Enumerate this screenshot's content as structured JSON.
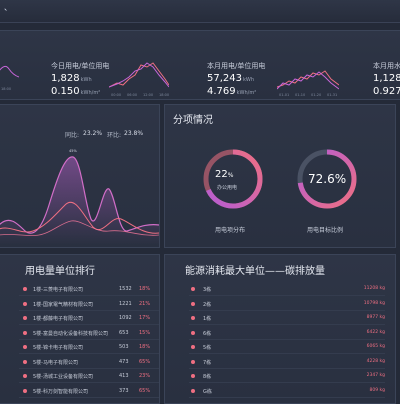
{
  "topbar": {
    "title": "、"
  },
  "stats": {
    "today_label": "今日用电/单位用电",
    "today_value1": "1,828",
    "today_unit1": "kWh",
    "today_value2": "0.150",
    "today_unit2": "kWh/m²",
    "month_label": "本月用电/单位用电",
    "month_value1": "57,243",
    "month_unit1": "kWh",
    "month_value2": "4.769",
    "month_unit2": "kWh/m²",
    "right_label": "本月用水",
    "right_value1": "1,128",
    "right_value2": "0.927",
    "mini_axis_a": [
      "00:00",
      "06:00",
      "12:00",
      "18:00"
    ],
    "mini_axis_b": [
      "01-01",
      "01-10",
      "01-20",
      "01-31"
    ]
  },
  "trend": {
    "yoy_label": "同比:",
    "yoy_value": "23.2%",
    "mom_label": "环比:",
    "mom_value": "23.8%",
    "peak_label": "45%"
  },
  "subitem": {
    "title": "分项情况",
    "donut1_value": "22",
    "donut1_unit": "%",
    "donut1_sub": "办公用电",
    "donut1_caption": "用电项分布",
    "donut1_fraction": 0.22,
    "donut2_value": "72.6%",
    "donut2_caption": "用电目标比例",
    "donut2_fraction": 0.726
  },
  "ranking": {
    "title": "用电量单位排行",
    "rows": [
      {
        "name": "1楼-三菱电子有限公司",
        "num": "1532",
        "pct": "18%"
      },
      {
        "name": "1楼-国家電气精材有限公司",
        "num": "1221",
        "pct": "21%"
      },
      {
        "name": "1楼-都藤电子有限公司",
        "num": "1092",
        "pct": "17%"
      },
      {
        "name": "5楼-富曼自动化设备科技有限公司",
        "num": "653",
        "pct": "15%"
      },
      {
        "name": "5楼-锦卡电子有限公司",
        "num": "503",
        "pct": "18%"
      },
      {
        "name": "5楼-马电子有限公司",
        "num": "473",
        "pct": "65%"
      },
      {
        "name": "5楼-汤城工业设备有限公司",
        "num": "413",
        "pct": "23%"
      },
      {
        "name": "5楼-科万剑智能有限公司",
        "num": "373",
        "pct": "65%"
      }
    ]
  },
  "carbon": {
    "title": "能源消耗最大单位——碳排放量",
    "rows": [
      {
        "name": "3栋",
        "value": "11208 kg"
      },
      {
        "name": "2栋",
        "value": "10798 kg"
      },
      {
        "name": "1栋",
        "value": "8977 kg"
      },
      {
        "name": "6栋",
        "value": "6422 kg"
      },
      {
        "name": "5栋",
        "value": "6065 kg"
      },
      {
        "name": "7栋",
        "value": "4228 kg"
      },
      {
        "name": "8栋",
        "value": "2347 kg"
      },
      {
        "name": "G栋",
        "value": "809 kg"
      }
    ]
  },
  "colors": {
    "accent_pink": "#ef6f82",
    "accent_purple": "#c766d9",
    "track": "#4a5264"
  }
}
